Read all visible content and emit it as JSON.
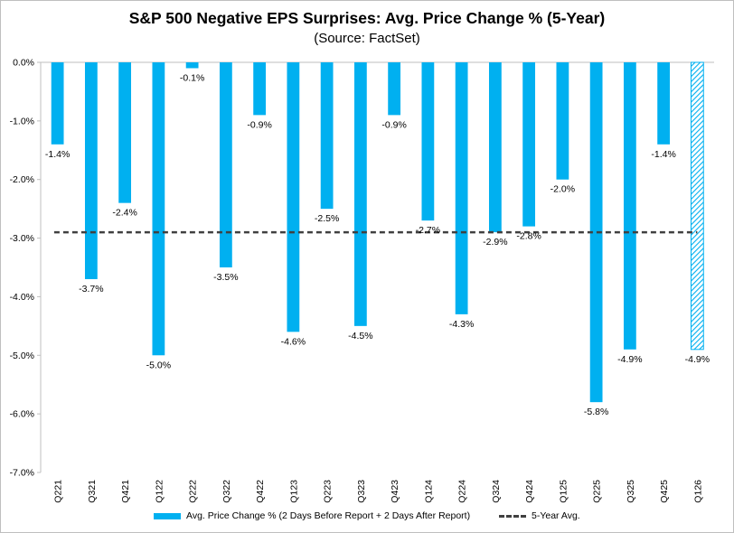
{
  "chart_data": {
    "type": "bar",
    "title": "S&P 500 Negative EPS Surprises: Avg. Price Change % (5-Year)",
    "subtitle": "(Source: FactSet)",
    "categories": [
      "Q221",
      "Q321",
      "Q421",
      "Q122",
      "Q222",
      "Q322",
      "Q422",
      "Q123",
      "Q223",
      "Q323",
      "Q423",
      "Q124",
      "Q224",
      "Q324",
      "Q424",
      "Q125",
      "Q225",
      "Q325",
      "Q425",
      "Q126"
    ],
    "series": [
      {
        "name": "Avg. Price Change % (2 Days Before Report + 2 Days After Report)",
        "values": [
          -1.4,
          -3.7,
          -2.4,
          -5.0,
          -0.1,
          -3.5,
          -0.9,
          -4.6,
          -2.5,
          -4.5,
          -0.9,
          -2.7,
          -4.3,
          -2.9,
          -2.8,
          -2.0,
          -5.8,
          -4.9,
          -1.4,
          -4.9
        ],
        "labels": [
          "-1.4%",
          "-3.7%",
          "-2.4%",
          "-5.0%",
          "-0.1%",
          "-3.5%",
          "-0.9%",
          "-4.6%",
          "-2.5%",
          "-4.5%",
          "-0.9%",
          "-2.7%",
          "-4.3%",
          "-2.9%",
          "-2.8%",
          "-2.0%",
          "-5.8%",
          "-4.9%",
          "-1.4%",
          "-4.9%"
        ],
        "color": "#00b0f0",
        "hatched_category": "Q126"
      },
      {
        "name": "5-Year Avg.",
        "type": "line",
        "value": -2.9,
        "color": "#404040",
        "style": "dashed"
      }
    ],
    "ylim": [
      -7.0,
      0.0
    ],
    "yticks": [
      0.0,
      -1.0,
      -2.0,
      -3.0,
      -4.0,
      -5.0,
      -6.0,
      -7.0
    ],
    "ytick_labels": [
      "0.0%",
      "-1.0%",
      "-2.0%",
      "-3.0%",
      "-4.0%",
      "-5.0%",
      "-6.0%",
      "-7.0%"
    ],
    "xlabel": "",
    "ylabel": "",
    "grid": false,
    "legend_position": "bottom"
  }
}
